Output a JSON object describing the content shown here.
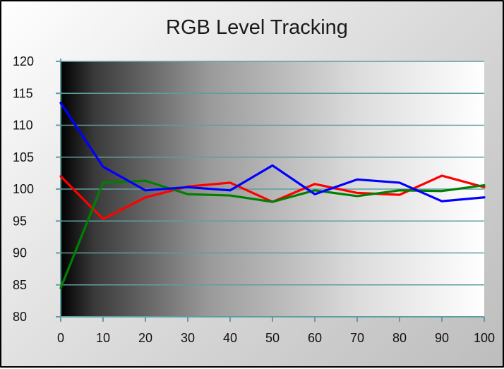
{
  "chart_data": {
    "type": "line",
    "title": "RGB Level Tracking",
    "xlabel": "",
    "ylabel": "",
    "x": [
      0,
      10,
      20,
      30,
      40,
      50,
      60,
      70,
      80,
      90,
      100
    ],
    "xlim": [
      0,
      100
    ],
    "ylim": [
      80,
      120
    ],
    "x_ticks": [
      "0",
      "10",
      "20",
      "30",
      "40",
      "50",
      "60",
      "70",
      "80",
      "90",
      "100"
    ],
    "y_ticks": [
      "80",
      "85",
      "90",
      "95",
      "100",
      "105",
      "110",
      "115",
      "120"
    ],
    "grid": true,
    "background": "black-to-white gradient",
    "series": [
      {
        "color": "#ff0000",
        "values": [
          102.0,
          95.3,
          98.7,
          100.4,
          101.0,
          98.0,
          100.8,
          99.4,
          99.1,
          102.1,
          100.3
        ]
      },
      {
        "color": "#008000",
        "values": [
          84.5,
          101.0,
          101.3,
          99.2,
          99.0,
          98.0,
          99.8,
          98.9,
          99.8,
          99.7,
          100.6
        ]
      },
      {
        "color": "#0000ff",
        "values": [
          113.5,
          103.5,
          99.8,
          100.3,
          99.8,
          103.7,
          99.2,
          101.5,
          101.0,
          98.1,
          98.7
        ]
      }
    ]
  }
}
